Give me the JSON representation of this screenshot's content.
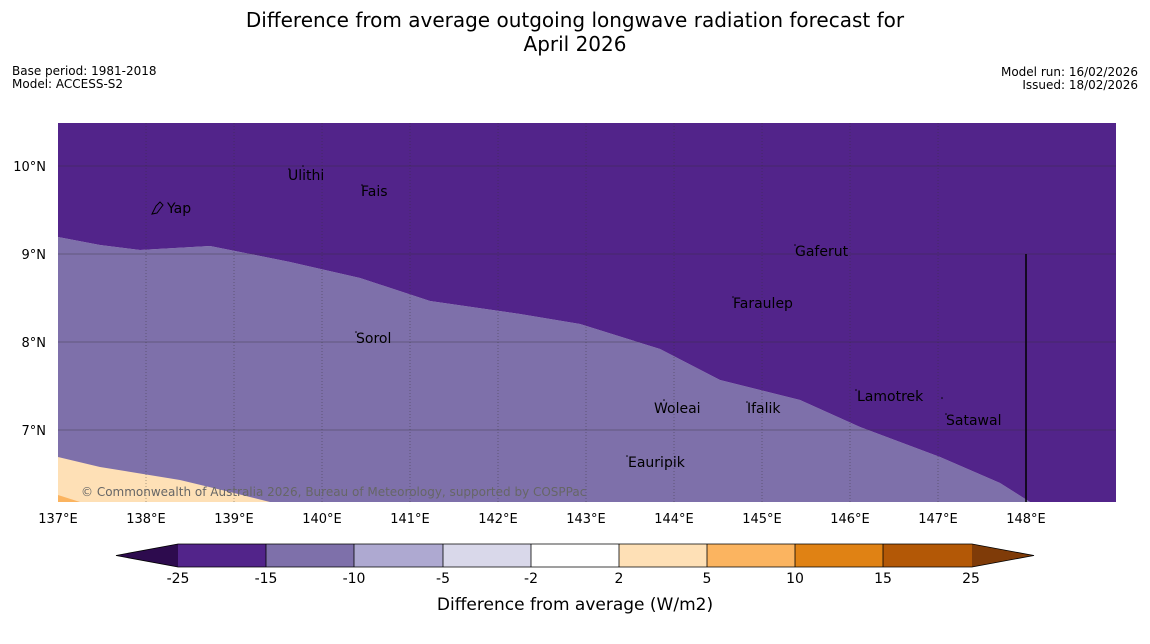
{
  "header": {
    "title_line1": "Difference from average outgoing longwave radiation forecast for",
    "title_line2": "April 2026",
    "base_period": "Base period: 1981-2018",
    "model": "Model: ACCESS-S2",
    "model_run": "Model run: 16/02/2026",
    "issued": "Issued: 18/02/2026"
  },
  "map": {
    "lat_labels": [
      "10°N",
      "9°N",
      "8°N",
      "7°N"
    ],
    "lon_labels": [
      "137°E",
      "138°E",
      "139°E",
      "140°E",
      "141°E",
      "142°E",
      "143°E",
      "144°E",
      "145°E",
      "146°E",
      "147°E",
      "148°E"
    ],
    "places": [
      "Yap",
      "Ulithi",
      "Fais",
      "Gaferut",
      "Faraulep",
      "Sorol",
      "Woleai",
      "Ifalik",
      "Lamotrek",
      "Satawal",
      "Eauripik"
    ],
    "copyright": "© Commonwealth of Australia 2026, Bureau of Meteorology, supported by COSPPac"
  },
  "colorbar": {
    "ticks": [
      "-25",
      "-15",
      "-10",
      "-5",
      "-2",
      "2",
      "5",
      "10",
      "15",
      "25"
    ],
    "colors": [
      "#52248a",
      "#7e70aa",
      "#aea9d1",
      "#d9d8ea",
      "#ffffff",
      "#fee0b6",
      "#fbb460",
      "#e08214",
      "#b35806"
    ],
    "under_color": "#2d0b4e",
    "over_color": "#7f3b08",
    "label": "Difference from average (W/m2)"
  }
}
